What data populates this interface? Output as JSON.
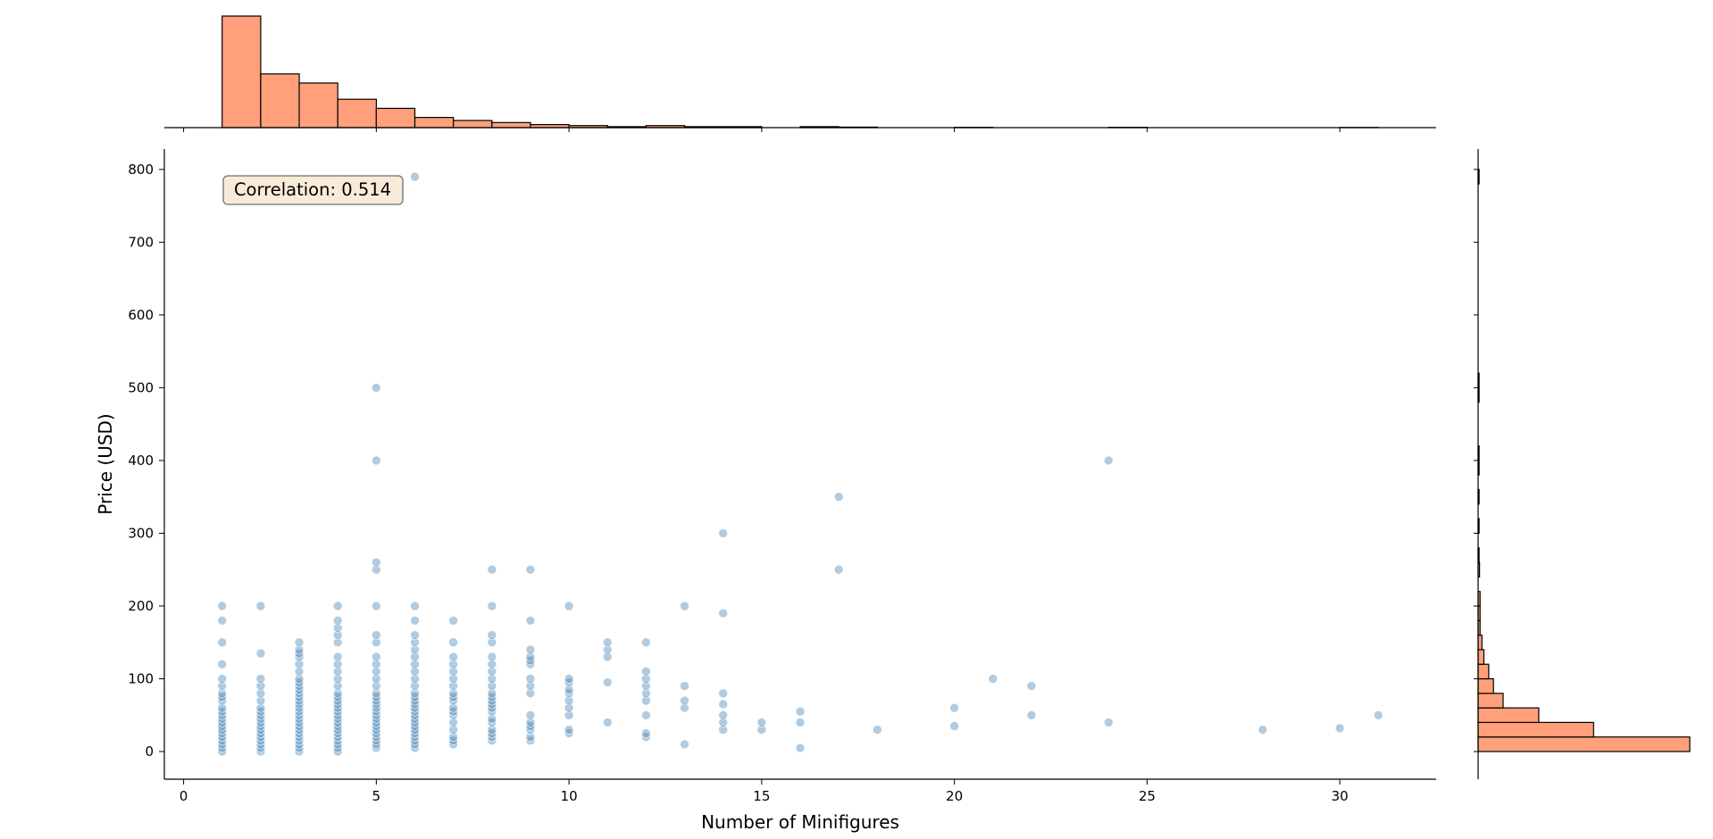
{
  "chart_data": {
    "type": "scatter",
    "xlabel": "Number of Minifigures",
    "ylabel": "Price (USD)",
    "xlim": [
      -0.5,
      32.5
    ],
    "ylim": [
      -38,
      828
    ],
    "x_ticks": [
      0,
      5,
      10,
      15,
      20,
      25,
      30
    ],
    "y_ticks": [
      0,
      100,
      200,
      300,
      400,
      500,
      600,
      700,
      800
    ],
    "grid": false,
    "annotation": "Correlation: 0.514",
    "colors": {
      "scatter": "#4682b4",
      "histogram": "#ffa07a",
      "edge": "#000000"
    },
    "series": [
      {
        "points": [
          [
            1,
            0
          ],
          [
            1,
            5
          ],
          [
            1,
            10
          ],
          [
            1,
            15
          ],
          [
            1,
            20
          ],
          [
            1,
            25
          ],
          [
            1,
            30
          ],
          [
            1,
            35
          ],
          [
            1,
            40
          ],
          [
            1,
            45
          ],
          [
            1,
            50
          ],
          [
            1,
            55
          ],
          [
            1,
            60
          ],
          [
            1,
            70
          ],
          [
            1,
            75
          ],
          [
            1,
            80
          ],
          [
            1,
            90
          ],
          [
            1,
            100
          ],
          [
            1,
            120
          ],
          [
            1,
            150
          ],
          [
            1,
            180
          ],
          [
            1,
            200
          ],
          [
            2,
            0
          ],
          [
            2,
            5
          ],
          [
            2,
            10
          ],
          [
            2,
            15
          ],
          [
            2,
            20
          ],
          [
            2,
            25
          ],
          [
            2,
            30
          ],
          [
            2,
            35
          ],
          [
            2,
            40
          ],
          [
            2,
            45
          ],
          [
            2,
            50
          ],
          [
            2,
            55
          ],
          [
            2,
            60
          ],
          [
            2,
            70
          ],
          [
            2,
            80
          ],
          [
            2,
            90
          ],
          [
            2,
            100
          ],
          [
            2,
            135
          ],
          [
            2,
            200
          ],
          [
            3,
            0
          ],
          [
            3,
            5
          ],
          [
            3,
            10
          ],
          [
            3,
            15
          ],
          [
            3,
            20
          ],
          [
            3,
            25
          ],
          [
            3,
            30
          ],
          [
            3,
            35
          ],
          [
            3,
            40
          ],
          [
            3,
            45
          ],
          [
            3,
            50
          ],
          [
            3,
            55
          ],
          [
            3,
            60
          ],
          [
            3,
            65
          ],
          [
            3,
            70
          ],
          [
            3,
            75
          ],
          [
            3,
            80
          ],
          [
            3,
            85
          ],
          [
            3,
            90
          ],
          [
            3,
            95
          ],
          [
            3,
            100
          ],
          [
            3,
            110
          ],
          [
            3,
            120
          ],
          [
            3,
            130
          ],
          [
            3,
            135
          ],
          [
            3,
            140
          ],
          [
            3,
            150
          ],
          [
            4,
            0
          ],
          [
            4,
            5
          ],
          [
            4,
            10
          ],
          [
            4,
            15
          ],
          [
            4,
            20
          ],
          [
            4,
            25
          ],
          [
            4,
            30
          ],
          [
            4,
            35
          ],
          [
            4,
            40
          ],
          [
            4,
            45
          ],
          [
            4,
            50
          ],
          [
            4,
            55
          ],
          [
            4,
            60
          ],
          [
            4,
            65
          ],
          [
            4,
            70
          ],
          [
            4,
            75
          ],
          [
            4,
            80
          ],
          [
            4,
            90
          ],
          [
            4,
            100
          ],
          [
            4,
            110
          ],
          [
            4,
            120
          ],
          [
            4,
            130
          ],
          [
            4,
            150
          ],
          [
            4,
            160
          ],
          [
            4,
            170
          ],
          [
            4,
            180
          ],
          [
            4,
            200
          ],
          [
            5,
            5
          ],
          [
            5,
            10
          ],
          [
            5,
            15
          ],
          [
            5,
            20
          ],
          [
            5,
            25
          ],
          [
            5,
            30
          ],
          [
            5,
            35
          ],
          [
            5,
            40
          ],
          [
            5,
            45
          ],
          [
            5,
            50
          ],
          [
            5,
            55
          ],
          [
            5,
            60
          ],
          [
            5,
            65
          ],
          [
            5,
            70
          ],
          [
            5,
            75
          ],
          [
            5,
            80
          ],
          [
            5,
            90
          ],
          [
            5,
            100
          ],
          [
            5,
            110
          ],
          [
            5,
            120
          ],
          [
            5,
            130
          ],
          [
            5,
            150
          ],
          [
            5,
            160
          ],
          [
            5,
            200
          ],
          [
            5,
            250
          ],
          [
            5,
            260
          ],
          [
            5,
            400
          ],
          [
            5,
            500
          ],
          [
            6,
            5
          ],
          [
            6,
            10
          ],
          [
            6,
            15
          ],
          [
            6,
            20
          ],
          [
            6,
            25
          ],
          [
            6,
            30
          ],
          [
            6,
            35
          ],
          [
            6,
            40
          ],
          [
            6,
            45
          ],
          [
            6,
            50
          ],
          [
            6,
            55
          ],
          [
            6,
            60
          ],
          [
            6,
            65
          ],
          [
            6,
            70
          ],
          [
            6,
            75
          ],
          [
            6,
            80
          ],
          [
            6,
            90
          ],
          [
            6,
            100
          ],
          [
            6,
            110
          ],
          [
            6,
            120
          ],
          [
            6,
            130
          ],
          [
            6,
            140
          ],
          [
            6,
            150
          ],
          [
            6,
            160
          ],
          [
            6,
            180
          ],
          [
            6,
            200
          ],
          [
            6,
            790
          ],
          [
            7,
            10
          ],
          [
            7,
            15
          ],
          [
            7,
            20
          ],
          [
            7,
            30
          ],
          [
            7,
            40
          ],
          [
            7,
            50
          ],
          [
            7,
            55
          ],
          [
            7,
            60
          ],
          [
            7,
            70
          ],
          [
            7,
            75
          ],
          [
            7,
            80
          ],
          [
            7,
            90
          ],
          [
            7,
            100
          ],
          [
            7,
            110
          ],
          [
            7,
            120
          ],
          [
            7,
            130
          ],
          [
            7,
            150
          ],
          [
            7,
            180
          ],
          [
            8,
            15
          ],
          [
            8,
            20
          ],
          [
            8,
            25
          ],
          [
            8,
            30
          ],
          [
            8,
            40
          ],
          [
            8,
            45
          ],
          [
            8,
            55
          ],
          [
            8,
            60
          ],
          [
            8,
            65
          ],
          [
            8,
            70
          ],
          [
            8,
            75
          ],
          [
            8,
            80
          ],
          [
            8,
            90
          ],
          [
            8,
            100
          ],
          [
            8,
            110
          ],
          [
            8,
            120
          ],
          [
            8,
            130
          ],
          [
            8,
            150
          ],
          [
            8,
            160
          ],
          [
            8,
            200
          ],
          [
            8,
            250
          ],
          [
            9,
            15
          ],
          [
            9,
            20
          ],
          [
            9,
            30
          ],
          [
            9,
            35
          ],
          [
            9,
            40
          ],
          [
            9,
            50
          ],
          [
            9,
            80
          ],
          [
            9,
            90
          ],
          [
            9,
            100
          ],
          [
            9,
            120
          ],
          [
            9,
            125
          ],
          [
            9,
            130
          ],
          [
            9,
            140
          ],
          [
            9,
            180
          ],
          [
            9,
            250
          ],
          [
            10,
            25
          ],
          [
            10,
            30
          ],
          [
            10,
            50
          ],
          [
            10,
            60
          ],
          [
            10,
            70
          ],
          [
            10,
            80
          ],
          [
            10,
            85
          ],
          [
            10,
            95
          ],
          [
            10,
            100
          ],
          [
            10,
            200
          ],
          [
            11,
            40
          ],
          [
            11,
            95
          ],
          [
            11,
            130
          ],
          [
            11,
            140
          ],
          [
            11,
            150
          ],
          [
            12,
            20
          ],
          [
            12,
            25
          ],
          [
            12,
            50
          ],
          [
            12,
            70
          ],
          [
            12,
            80
          ],
          [
            12,
            90
          ],
          [
            12,
            100
          ],
          [
            12,
            110
          ],
          [
            12,
            150
          ],
          [
            13,
            10
          ],
          [
            13,
            60
          ],
          [
            13,
            70
          ],
          [
            13,
            90
          ],
          [
            13,
            200
          ],
          [
            14,
            30
          ],
          [
            14,
            40
          ],
          [
            14,
            50
          ],
          [
            14,
            65
          ],
          [
            14,
            80
          ],
          [
            14,
            190
          ],
          [
            14,
            300
          ],
          [
            15,
            30
          ],
          [
            15,
            40
          ],
          [
            16,
            5
          ],
          [
            16,
            40
          ],
          [
            16,
            55
          ],
          [
            17,
            250
          ],
          [
            17,
            350
          ],
          [
            18,
            30
          ],
          [
            20,
            35
          ],
          [
            20,
            60
          ],
          [
            21,
            100
          ],
          [
            22,
            50
          ],
          [
            22,
            90
          ],
          [
            24,
            40
          ],
          [
            24,
            400
          ],
          [
            28,
            30
          ],
          [
            30,
            32
          ],
          [
            31,
            50
          ]
        ]
      }
    ],
    "x_hist": {
      "bins": [
        [
          1,
          2,
          110
        ],
        [
          2,
          3,
          53
        ],
        [
          3,
          4,
          44
        ],
        [
          4,
          5,
          28
        ],
        [
          5,
          6,
          19
        ],
        [
          6,
          7,
          10
        ],
        [
          7,
          8,
          7
        ],
        [
          8,
          9,
          5
        ],
        [
          9,
          10,
          3
        ],
        [
          10,
          11,
          2
        ],
        [
          11,
          12,
          1
        ],
        [
          12,
          13,
          2
        ],
        [
          13,
          14,
          1
        ],
        [
          14,
          15,
          1
        ],
        [
          16,
          17,
          1
        ],
        [
          17,
          18,
          0.5
        ],
        [
          20,
          21,
          0.3
        ],
        [
          24,
          25,
          0.3
        ],
        [
          30,
          31,
          0.2
        ]
      ]
    },
    "y_hist": {
      "bins": [
        [
          0,
          20,
          220
        ],
        [
          20,
          40,
          120
        ],
        [
          40,
          60,
          63
        ],
        [
          60,
          80,
          26
        ],
        [
          80,
          100,
          16
        ],
        [
          100,
          120,
          11
        ],
        [
          120,
          140,
          6
        ],
        [
          140,
          160,
          4
        ],
        [
          160,
          180,
          2
        ],
        [
          180,
          200,
          2
        ],
        [
          200,
          220,
          2
        ],
        [
          240,
          260,
          1.5
        ],
        [
          260,
          280,
          1
        ],
        [
          300,
          320,
          1
        ],
        [
          340,
          360,
          1
        ],
        [
          380,
          400,
          1
        ],
        [
          400,
          420,
          1
        ],
        [
          480,
          500,
          1
        ],
        [
          500,
          520,
          1
        ],
        [
          780,
          800,
          1
        ]
      ]
    }
  }
}
